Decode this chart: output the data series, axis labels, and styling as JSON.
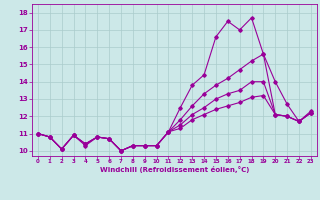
{
  "xlabel": "Windchill (Refroidissement éolien,°C)",
  "bg_color": "#cce8e8",
  "line_color": "#990099",
  "grid_color": "#aacccc",
  "x_ticks": [
    0,
    1,
    2,
    3,
    4,
    5,
    6,
    7,
    8,
    9,
    10,
    11,
    12,
    13,
    14,
    15,
    16,
    17,
    18,
    19,
    20,
    21,
    22,
    23
  ],
  "y_ticks": [
    10,
    11,
    12,
    13,
    14,
    15,
    16,
    17,
    18
  ],
  "ylim": [
    9.7,
    18.5
  ],
  "xlim": [
    -0.5,
    23.5
  ],
  "line1_y": [
    11.0,
    10.8,
    10.1,
    10.9,
    10.3,
    10.8,
    10.7,
    10.0,
    10.3,
    10.3,
    10.3,
    11.1,
    12.5,
    13.8,
    14.4,
    16.6,
    17.5,
    17.0,
    17.7,
    15.6,
    14.0,
    12.7,
    11.7,
    12.3
  ],
  "line2_y": [
    11.0,
    10.8,
    10.1,
    10.9,
    10.4,
    10.8,
    10.7,
    10.0,
    10.3,
    10.3,
    10.3,
    11.1,
    11.8,
    12.6,
    13.3,
    13.8,
    14.2,
    14.7,
    15.2,
    15.6,
    12.1,
    12.0,
    11.7,
    12.2
  ],
  "line3_y": [
    11.0,
    10.8,
    10.1,
    10.9,
    10.4,
    10.8,
    10.7,
    10.0,
    10.3,
    10.3,
    10.3,
    11.1,
    11.5,
    12.1,
    12.5,
    13.0,
    13.3,
    13.5,
    14.0,
    14.0,
    12.1,
    12.0,
    11.7,
    12.2
  ],
  "line4_y": [
    11.0,
    10.8,
    10.1,
    10.9,
    10.4,
    10.8,
    10.7,
    10.0,
    10.3,
    10.3,
    10.3,
    11.1,
    11.3,
    11.8,
    12.1,
    12.4,
    12.6,
    12.8,
    13.1,
    13.2,
    12.1,
    12.0,
    11.7,
    12.2
  ]
}
